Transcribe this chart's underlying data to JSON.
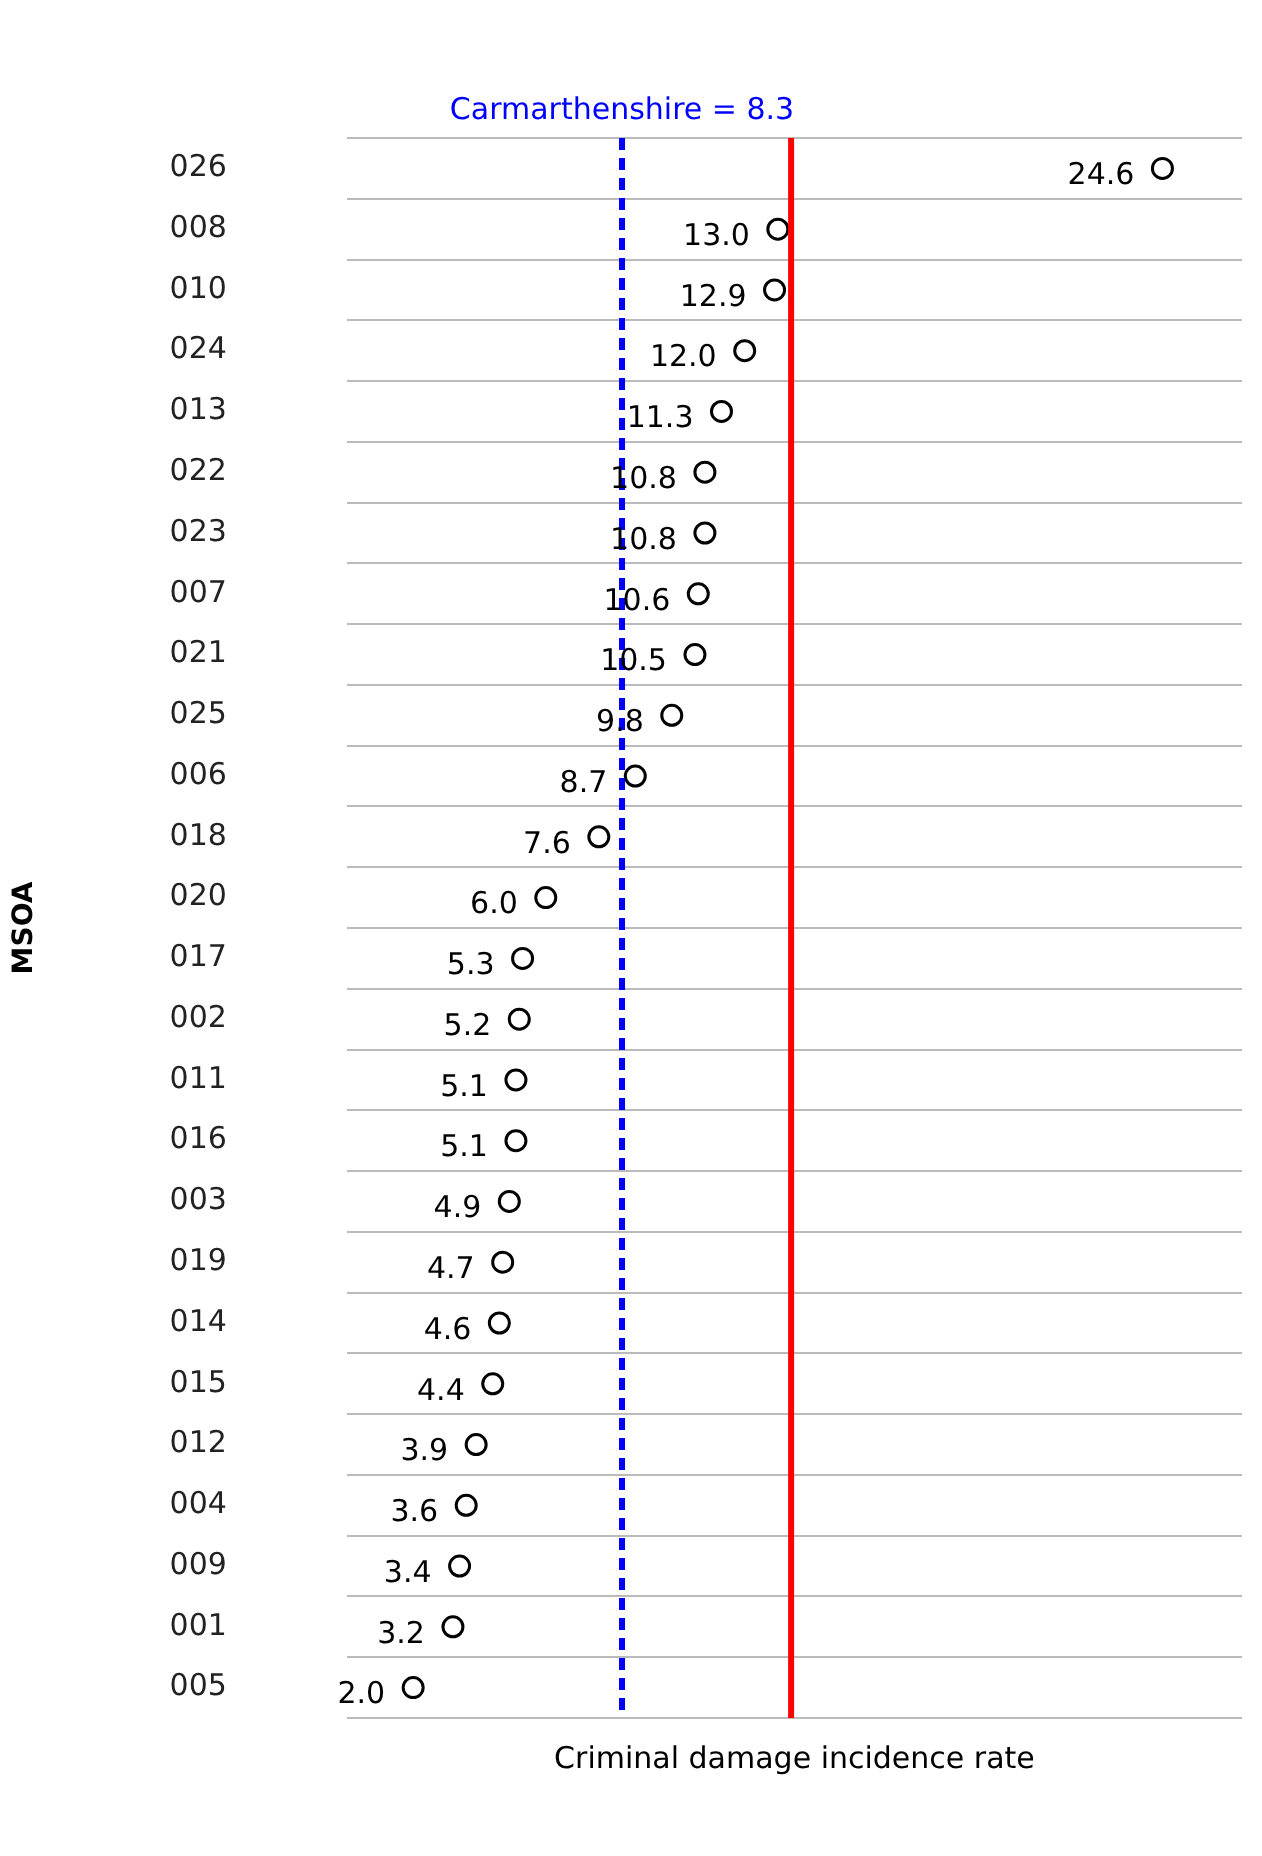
{
  "chart_data": {
    "type": "scatter",
    "orientation": "horizontal",
    "xlabel": "Criminal damage incidence rate",
    "ylabel": "MSOA",
    "categories": [
      "026",
      "008",
      "010",
      "024",
      "013",
      "022",
      "023",
      "007",
      "021",
      "025",
      "006",
      "018",
      "020",
      "017",
      "002",
      "011",
      "016",
      "003",
      "019",
      "014",
      "015",
      "012",
      "004",
      "009",
      "001",
      "005"
    ],
    "values": [
      24.6,
      13.0,
      12.9,
      12.0,
      11.3,
      10.8,
      10.8,
      10.6,
      10.5,
      9.8,
      8.7,
      7.6,
      6.0,
      5.3,
      5.2,
      5.1,
      5.1,
      4.9,
      4.7,
      4.6,
      4.4,
      3.9,
      3.6,
      3.4,
      3.2,
      2.0
    ],
    "value_labels": [
      "24.6",
      "13.0",
      "12.9",
      "12.0",
      "11.3",
      "10.8",
      "10.8",
      "10.6",
      "10.5",
      "9.8",
      "8.7",
      "7.6",
      "6.0",
      "5.3",
      "5.2",
      "5.1",
      "5.1",
      "4.9",
      "4.7",
      "4.6",
      "4.4",
      "3.9",
      "3.6",
      "3.4",
      "3.2",
      "2.0"
    ],
    "color": "#000000",
    "marker": "circle",
    "xlim": [
      0,
      27
    ],
    "grid": "y",
    "legend": false,
    "tick_labels": "y",
    "ref_lines": [
      {
        "axis": "x",
        "value": 8.3,
        "label": "Carmarthenshire = 8.3",
        "color": "#0000ff",
        "line_style": "dashed"
      },
      {
        "axis": "x",
        "value": 13.4,
        "color": "#ff0000",
        "line_style": "solid"
      }
    ]
  }
}
